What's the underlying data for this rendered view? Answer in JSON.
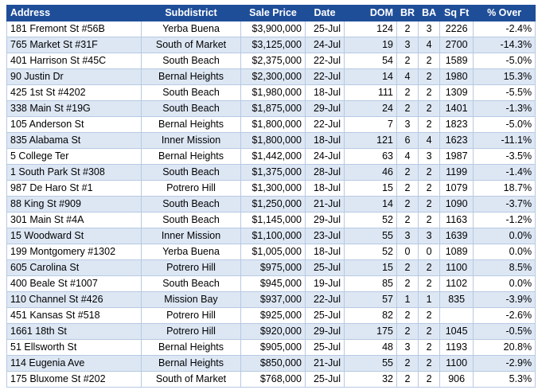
{
  "table": {
    "header": [
      "Address",
      "Subdistrict",
      "Sale Price",
      "Date",
      "DOM",
      "BR",
      "BA",
      "Sq Ft",
      "% Over"
    ],
    "rows": [
      [
        "181 Fremont St #56B",
        "Yerba Buena",
        "$3,900,000",
        "25-Jul",
        "124",
        "2",
        "3",
        "2226",
        "-2.4%"
      ],
      [
        "765 Market St #31F",
        "South of Market",
        "$3,125,000",
        "24-Jul",
        "19",
        "3",
        "4",
        "2700",
        "-14.3%"
      ],
      [
        "401 Harrison St #45C",
        "South Beach",
        "$2,375,000",
        "22-Jul",
        "54",
        "2",
        "2",
        "1589",
        "-5.0%"
      ],
      [
        "90 Justin Dr",
        "Bernal Heights",
        "$2,300,000",
        "22-Jul",
        "14",
        "4",
        "2",
        "1980",
        "15.3%"
      ],
      [
        "425 1st St #4202",
        "South Beach",
        "$1,980,000",
        "18-Jul",
        "111",
        "2",
        "2",
        "1309",
        "-5.5%"
      ],
      [
        "338 Main St #19G",
        "South Beach",
        "$1,875,000",
        "29-Jul",
        "24",
        "2",
        "2",
        "1401",
        "-1.3%"
      ],
      [
        "105 Anderson St",
        "Bernal Heights",
        "$1,800,000",
        "22-Jul",
        "7",
        "3",
        "2",
        "1823",
        "-5.0%"
      ],
      [
        "835 Alabama St",
        "Inner Mission",
        "$1,800,000",
        "18-Jul",
        "121",
        "6",
        "4",
        "1623",
        "-11.1%"
      ],
      [
        "5 College Ter",
        "Bernal Heights",
        "$1,442,000",
        "24-Jul",
        "63",
        "4",
        "3",
        "1987",
        "-3.5%"
      ],
      [
        "1 South Park St #308",
        "South Beach",
        "$1,375,000",
        "28-Jul",
        "46",
        "2",
        "2",
        "1199",
        "-1.4%"
      ],
      [
        "987 De Haro St #1",
        "Potrero Hill",
        "$1,300,000",
        "18-Jul",
        "15",
        "2",
        "2",
        "1079",
        "18.7%"
      ],
      [
        "88 King St #909",
        "South Beach",
        "$1,250,000",
        "21-Jul",
        "14",
        "2",
        "2",
        "1090",
        "-3.7%"
      ],
      [
        "301 Main St #4A",
        "South Beach",
        "$1,145,000",
        "29-Jul",
        "52",
        "2",
        "2",
        "1163",
        "-1.2%"
      ],
      [
        "15 Woodward St",
        "Inner Mission",
        "$1,100,000",
        "23-Jul",
        "55",
        "3",
        "3",
        "1639",
        "0.0%"
      ],
      [
        "199 Montgomery #1302",
        "Yerba Buena",
        "$1,005,000",
        "18-Jul",
        "52",
        "0",
        "0",
        "1089",
        "0.0%"
      ],
      [
        "605 Carolina St",
        "Potrero Hill",
        "$975,000",
        "25-Jul",
        "15",
        "2",
        "2",
        "1100",
        "8.5%"
      ],
      [
        "400 Beale St #1007",
        "South Beach",
        "$945,000",
        "19-Jul",
        "85",
        "2",
        "2",
        "1102",
        "0.0%"
      ],
      [
        "110 Channel St #426",
        "Mission Bay",
        "$937,000",
        "22-Jul",
        "57",
        "1",
        "1",
        "835",
        "-3.9%"
      ],
      [
        "451 Kansas St #518",
        "Potrero Hill",
        "$925,000",
        "25-Jul",
        "82",
        "2",
        "2",
        null,
        "-2.6%"
      ],
      [
        "1661 18th St",
        "Potrero Hill",
        "$920,000",
        "29-Jul",
        "175",
        "2",
        "2",
        "1045",
        "-0.5%"
      ],
      [
        "51 Ellsworth St",
        "Bernal Heights",
        "$905,000",
        "25-Jul",
        "48",
        "3",
        "2",
        "1193",
        "20.8%"
      ],
      [
        "114 Eugenia Ave",
        "Bernal Heights",
        "$850,000",
        "21-Jul",
        "55",
        "2",
        "2",
        "1100",
        "-2.9%"
      ],
      [
        "175 Bluxome St #202",
        "South of Market",
        "$768,000",
        "25-Jul",
        "32",
        "2",
        "2",
        "906",
        "5.3%"
      ]
    ]
  }
}
